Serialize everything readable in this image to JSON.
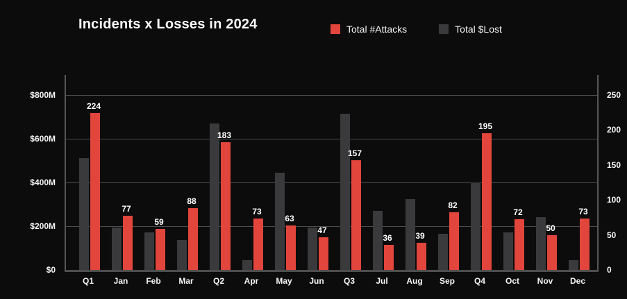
{
  "header": {
    "title": "Incidents x Losses in 2024"
  },
  "chart_data": {
    "type": "bar",
    "title": "Incidents x Losses in 2024",
    "legend_position": "top",
    "grid": "horizontal",
    "categories": [
      "Q1",
      "Jan",
      "Feb",
      "Mar",
      "Q2",
      "Apr",
      "May",
      "Jun",
      "Q3",
      "Jul",
      "Aug",
      "Sep",
      "Q4",
      "Oct",
      "Nov",
      "Dec"
    ],
    "series": [
      {
        "name": "Total $Lost",
        "color": "#3a3a3c",
        "axis": "left",
        "unit": "$M",
        "values": [
          510,
          195,
          170,
          135,
          670,
          45,
          445,
          195,
          715,
          270,
          325,
          165,
          400,
          170,
          240,
          45
        ]
      },
      {
        "name": "Total #Attacks",
        "color": "#e2453c",
        "axis": "right",
        "value_labels": true,
        "values": [
          224,
          77,
          59,
          88,
          183,
          73,
          63,
          47,
          157,
          36,
          39,
          82,
          195,
          72,
          50,
          73
        ]
      }
    ],
    "left_axis": {
      "range": [
        0,
        800
      ],
      "tick_labels": [
        "$0",
        "$200M",
        "$400M",
        "$600M",
        "$800M"
      ],
      "tick_values": [
        0,
        200,
        400,
        600,
        800
      ]
    },
    "right_axis": {
      "range": [
        0,
        250
      ],
      "tick_labels": [
        "0",
        "50",
        "100",
        "150",
        "200",
        "250"
      ],
      "tick_values": [
        0,
        50,
        100,
        150,
        200,
        250
      ]
    },
    "colors": {
      "background": "#0c0c0c",
      "text": "#f5f5f5",
      "gridline": "#4d4d4d",
      "axis_line": "#585858",
      "attacks_red": "#e2453c",
      "lost_gray": "#3a3a3c"
    }
  }
}
